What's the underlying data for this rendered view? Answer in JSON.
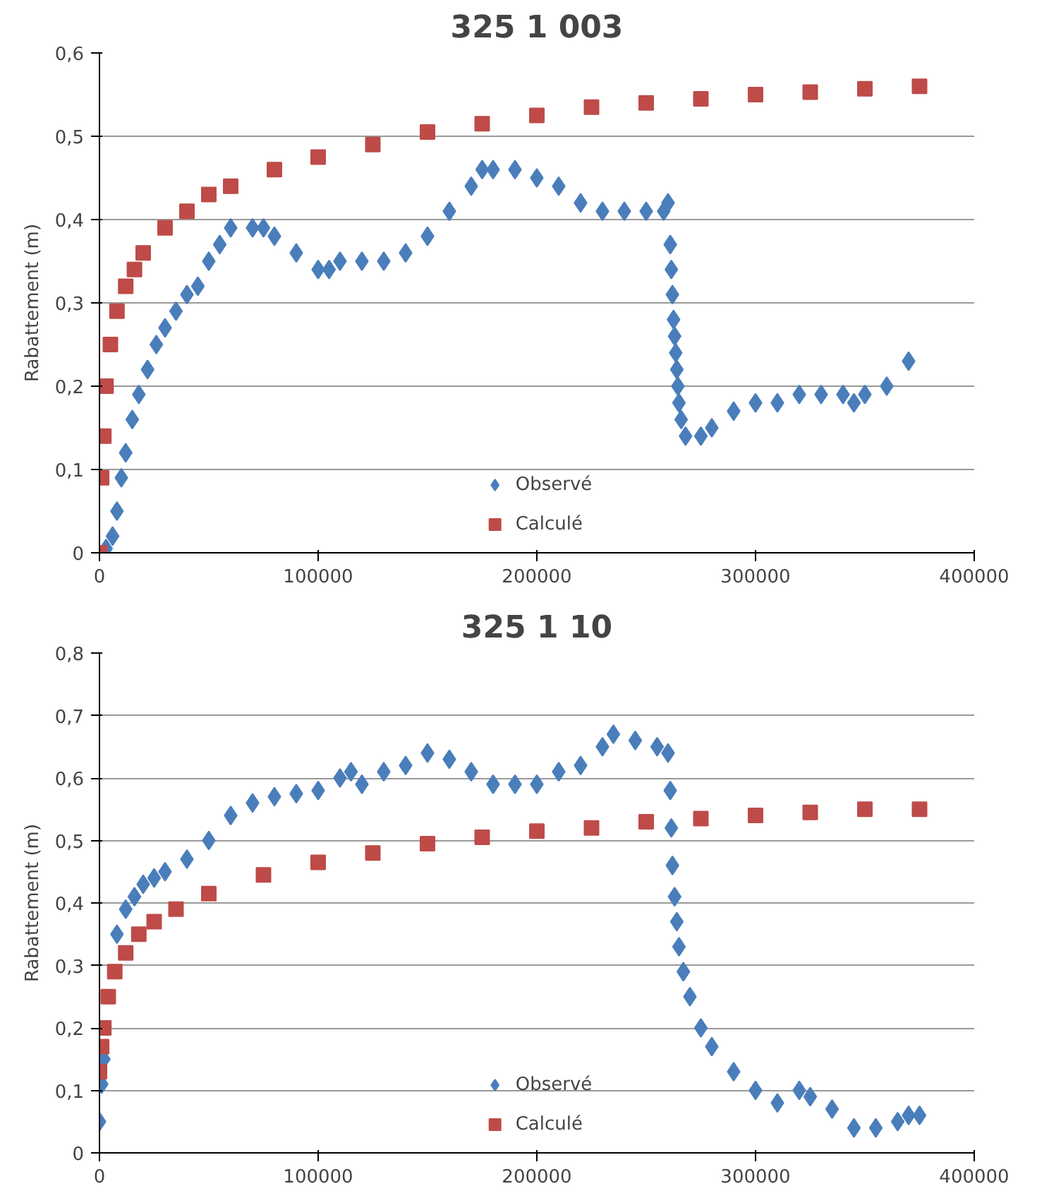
{
  "chart_data": [
    {
      "type": "scatter",
      "title": "325 1 003",
      "ylabel": "Rabattement (m)",
      "xlim": [
        0,
        400000
      ],
      "ylim": [
        0,
        0.6
      ],
      "xticks": [
        0,
        100000,
        200000,
        300000,
        400000
      ],
      "yticks": [
        {
          "value": 0,
          "label": "0"
        },
        {
          "value": 0.1,
          "label": "0,1"
        },
        {
          "value": 0.2,
          "label": "0,2"
        },
        {
          "value": 0.3,
          "label": "0,3"
        },
        {
          "value": 0.4,
          "label": "0,4"
        },
        {
          "value": 0.5,
          "label": "0,5"
        },
        {
          "value": 0.6,
          "label": "0,6"
        }
      ],
      "grid": "y",
      "legend": "bottom",
      "series": [
        {
          "name": "Observé",
          "color": "#4a7ebb",
          "marker": "diamond",
          "x": [
            3000,
            6000,
            8000,
            10000,
            12000,
            15000,
            18000,
            22000,
            26000,
            30000,
            35000,
            40000,
            45000,
            50000,
            55000,
            60000,
            70000,
            75000,
            80000,
            90000,
            100000,
            105000,
            110000,
            120000,
            130000,
            140000,
            150000,
            160000,
            170000,
            175000,
            180000,
            190000,
            200000,
            210000,
            220000,
            230000,
            240000,
            250000,
            258000,
            260000,
            261000,
            261500,
            262000,
            262500,
            263000,
            263500,
            264000,
            264500,
            265000,
            266000,
            268000,
            275000,
            280000,
            290000,
            300000,
            310000,
            320000,
            330000,
            340000,
            345000,
            350000,
            360000,
            370000
          ],
          "values": [
            0.005,
            0.02,
            0.05,
            0.09,
            0.12,
            0.16,
            0.19,
            0.22,
            0.25,
            0.27,
            0.29,
            0.31,
            0.32,
            0.35,
            0.37,
            0.39,
            0.39,
            0.39,
            0.38,
            0.36,
            0.34,
            0.34,
            0.35,
            0.35,
            0.35,
            0.36,
            0.38,
            0.41,
            0.44,
            0.46,
            0.46,
            0.46,
            0.45,
            0.44,
            0.42,
            0.41,
            0.41,
            0.41,
            0.41,
            0.42,
            0.37,
            0.34,
            0.31,
            0.28,
            0.26,
            0.24,
            0.22,
            0.2,
            0.18,
            0.16,
            0.14,
            0.14,
            0.15,
            0.17,
            0.18,
            0.18,
            0.19,
            0.19,
            0.19,
            0.18,
            0.19,
            0.2,
            0.23
          ]
        },
        {
          "name": "Calculé",
          "color": "#be4b48",
          "marker": "square",
          "x": [
            0,
            1000,
            2000,
            3000,
            5000,
            8000,
            12000,
            16000,
            20000,
            30000,
            40000,
            50000,
            60000,
            80000,
            100000,
            125000,
            150000,
            175000,
            200000,
            225000,
            250000,
            275000,
            300000,
            325000,
            350000,
            375000
          ],
          "values": [
            0,
            0.09,
            0.14,
            0.2,
            0.25,
            0.29,
            0.32,
            0.34,
            0.36,
            0.39,
            0.41,
            0.43,
            0.44,
            0.46,
            0.475,
            0.49,
            0.505,
            0.515,
            0.525,
            0.535,
            0.54,
            0.545,
            0.55,
            0.553,
            0.557,
            0.56
          ]
        }
      ]
    },
    {
      "type": "scatter",
      "title": "325 1 10",
      "ylabel": "Rabattement (m)",
      "xlim": [
        0,
        400000
      ],
      "ylim": [
        0,
        0.8
      ],
      "xticks": [
        0,
        100000,
        200000,
        300000,
        400000
      ],
      "yticks": [
        {
          "value": 0,
          "label": "0"
        },
        {
          "value": 0.1,
          "label": "0,1"
        },
        {
          "value": 0.2,
          "label": "0,2"
        },
        {
          "value": 0.3,
          "label": "0,3"
        },
        {
          "value": 0.4,
          "label": "0,4"
        },
        {
          "value": 0.5,
          "label": "0,5"
        },
        {
          "value": 0.6,
          "label": "0,6"
        },
        {
          "value": 0.7,
          "label": "0,7"
        },
        {
          "value": 0.8,
          "label": "0,8"
        }
      ],
      "grid": "y",
      "legend": "bottom",
      "series": [
        {
          "name": "Observé",
          "color": "#4a7ebb",
          "marker": "diamond",
          "x": [
            0,
            1000,
            2000,
            5000,
            8000,
            12000,
            16000,
            20000,
            25000,
            30000,
            40000,
            50000,
            60000,
            70000,
            80000,
            90000,
            100000,
            110000,
            115000,
            120000,
            130000,
            140000,
            150000,
            160000,
            170000,
            180000,
            190000,
            200000,
            210000,
            220000,
            230000,
            235000,
            245000,
            255000,
            260000,
            261000,
            261500,
            262000,
            263000,
            264000,
            265000,
            267000,
            270000,
            275000,
            280000,
            290000,
            300000,
            310000,
            320000,
            325000,
            335000,
            345000,
            355000,
            365000,
            370000,
            375000
          ],
          "values": [
            0.05,
            0.11,
            0.15,
            null,
            0.35,
            0.39,
            0.41,
            0.43,
            0.44,
            0.45,
            0.47,
            0.5,
            0.54,
            0.56,
            0.57,
            0.575,
            0.58,
            0.6,
            0.61,
            0.59,
            0.61,
            0.62,
            0.64,
            0.63,
            0.61,
            0.59,
            0.59,
            0.59,
            0.61,
            0.62,
            0.65,
            0.67,
            0.66,
            0.65,
            0.64,
            0.58,
            0.52,
            0.46,
            0.41,
            0.37,
            0.33,
            0.29,
            0.25,
            0.2,
            0.17,
            0.13,
            0.1,
            0.08,
            0.1,
            0.09,
            0.07,
            0.04,
            0.04,
            0.05,
            0.06,
            0.06
          ]
        },
        {
          "name": "Calculé",
          "color": "#be4b48",
          "marker": "square",
          "x": [
            0,
            1000,
            2000,
            4000,
            7000,
            12000,
            18000,
            25000,
            35000,
            50000,
            75000,
            100000,
            125000,
            150000,
            175000,
            200000,
            225000,
            250000,
            275000,
            300000,
            325000,
            350000,
            375000
          ],
          "values": [
            0.13,
            0.17,
            0.2,
            0.25,
            0.29,
            0.32,
            0.35,
            0.37,
            0.39,
            0.415,
            0.445,
            0.465,
            0.48,
            0.495,
            0.505,
            0.515,
            0.52,
            0.53,
            0.535,
            0.54,
            0.545,
            0.55,
            0.55
          ]
        }
      ]
    }
  ]
}
